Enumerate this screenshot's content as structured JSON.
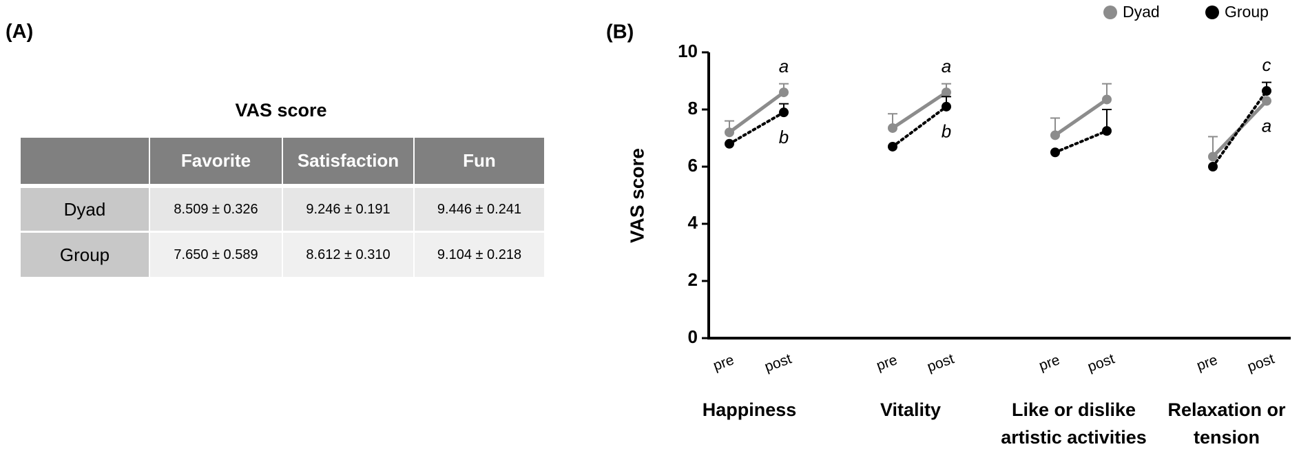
{
  "panel_a": {
    "label": "(A)",
    "table": {
      "title": "VAS score",
      "columns": [
        "Favorite",
        "Satisfaction",
        "Fun"
      ],
      "rows": [
        {
          "name": "Dyad",
          "cells": [
            "8.509 ± 0.326",
            "9.246 ± 0.191",
            "9.446 ± 0.241"
          ]
        },
        {
          "name": "Group",
          "cells": [
            "7.650 ± 0.589",
            "8.612 ± 0.310",
            "9.104 ± 0.218"
          ]
        }
      ]
    }
  },
  "panel_b": {
    "label": "(B)"
  },
  "chart_data": {
    "type": "line",
    "y_label": "VAS score",
    "categories": [
      "pre",
      "post",
      "pre",
      "post",
      "pre",
      "post",
      "pre",
      "post"
    ],
    "groups": [
      [
        "Happiness"
      ],
      [
        "Vitality"
      ],
      [
        "Like or dislike",
        "artistic activities"
      ],
      [
        "Relaxation or",
        "tension"
      ]
    ],
    "series": [
      {
        "name": "Dyad",
        "color": "#8c8c8c",
        "dash": false,
        "values": [
          7.2,
          8.6,
          7.35,
          8.6,
          7.1,
          8.35,
          6.35,
          8.3
        ],
        "errors": [
          0.4,
          0.3,
          0.5,
          0.3,
          0.6,
          0.55,
          0.7,
          null
        ],
        "annotations": [
          null,
          "a",
          null,
          "a",
          null,
          null,
          null,
          "a"
        ]
      },
      {
        "name": "Group",
        "color": "#000000",
        "dash": true,
        "values": [
          6.8,
          7.9,
          6.7,
          8.1,
          6.5,
          7.25,
          6.0,
          8.65
        ],
        "errors": [
          null,
          0.3,
          null,
          0.35,
          null,
          0.75,
          null,
          0.3
        ],
        "annotations": [
          null,
          "b",
          null,
          "b",
          null,
          null,
          null,
          "c"
        ]
      }
    ],
    "ylim": [
      0,
      10
    ],
    "yticks": [
      0,
      2,
      4,
      6,
      8,
      10
    ],
    "grid": false,
    "legend": "top-right"
  }
}
